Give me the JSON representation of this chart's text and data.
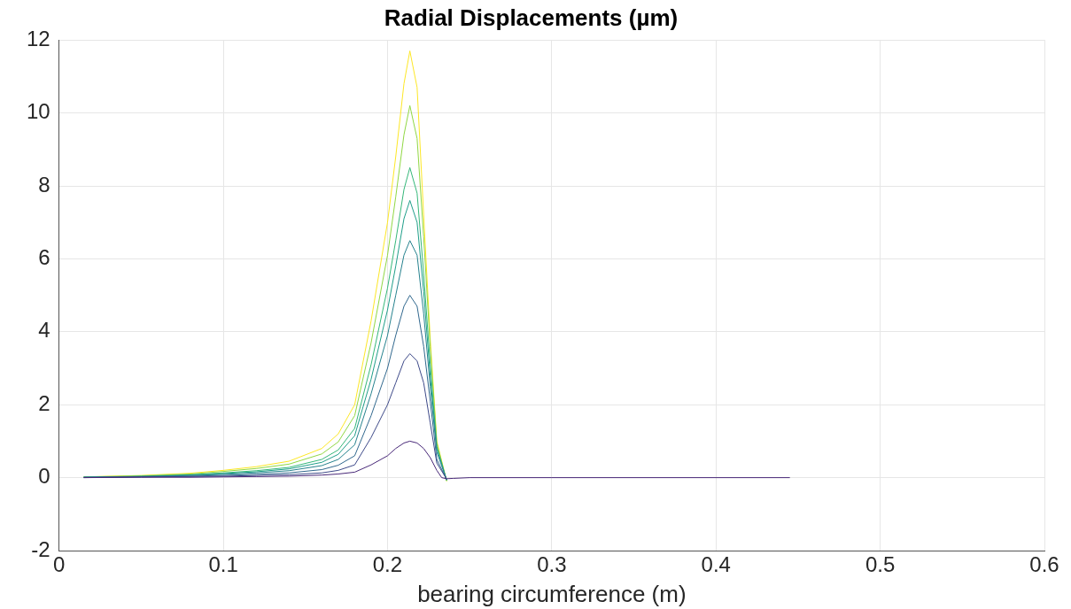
{
  "chart_data": {
    "type": "line",
    "title": "Radial Displacements (µm)",
    "xlabel": "bearing circumference (m)",
    "x": [
      0.015,
      0.05,
      0.08,
      0.1,
      0.12,
      0.14,
      0.16,
      0.17,
      0.18,
      0.19,
      0.2,
      0.205,
      0.21,
      0.2136,
      0.218,
      0.222,
      0.226,
      0.23,
      0.233,
      0.236,
      0.24,
      0.25,
      0.3,
      0.445
    ],
    "series": [
      {
        "color": "#482878",
        "values": [
          0,
          0.01,
          0.01,
          0.02,
          0.03,
          0.04,
          0.07,
          0.1,
          0.15,
          0.35,
          0.6,
          0.8,
          0.95,
          1.0,
          0.95,
          0.8,
          0.55,
          0.2,
          0,
          -0.03,
          -0.02,
          0,
          0,
          0
        ]
      },
      {
        "color": "#3e4a89",
        "values": [
          0,
          0.02,
          0.03,
          0.04,
          0.06,
          0.08,
          0.13,
          0.2,
          0.35,
          1.1,
          2.0,
          2.6,
          3.2,
          3.4,
          3.2,
          2.6,
          1.5,
          0.4,
          null,
          -0.04,
          null,
          null,
          null,
          null
        ]
      },
      {
        "color": "#31688e",
        "values": [
          0.01,
          0.02,
          0.04,
          0.06,
          0.09,
          0.13,
          0.22,
          0.34,
          0.6,
          1.7,
          3.0,
          3.9,
          4.7,
          5.0,
          4.7,
          3.6,
          2.1,
          0.5,
          null,
          -0.05,
          null,
          null,
          null,
          null
        ]
      },
      {
        "color": "#26828e",
        "values": [
          0.01,
          0.03,
          0.06,
          0.09,
          0.13,
          0.19,
          0.33,
          0.5,
          0.9,
          2.3,
          3.9,
          5.0,
          6.1,
          6.5,
          6.1,
          4.5,
          2.5,
          0.7,
          null,
          -0.06,
          null,
          null,
          null,
          null
        ]
      },
      {
        "color": "#1f9e89",
        "values": [
          0.01,
          0.03,
          0.07,
          0.11,
          0.16,
          0.24,
          0.42,
          0.64,
          1.15,
          2.7,
          4.6,
          5.8,
          7.1,
          7.6,
          7.0,
          5.1,
          2.8,
          0.8,
          null,
          -0.07,
          null,
          null,
          null,
          null
        ]
      },
      {
        "color": "#35b779",
        "values": [
          0.01,
          0.04,
          0.08,
          0.13,
          0.19,
          0.28,
          0.5,
          0.76,
          1.35,
          3.1,
          5.2,
          6.5,
          7.9,
          8.5,
          7.8,
          5.6,
          3.1,
          0.85,
          null,
          -0.08,
          null,
          null,
          null,
          null
        ]
      },
      {
        "color": "#90d743",
        "values": [
          0.02,
          0.05,
          0.1,
          0.17,
          0.25,
          0.37,
          0.65,
          0.98,
          1.7,
          3.7,
          6.1,
          7.7,
          9.4,
          10.2,
          9.3,
          6.6,
          3.6,
          0.95,
          null,
          -0.09,
          null,
          null,
          null,
          null
        ]
      },
      {
        "color": "#fde725",
        "values": [
          0.02,
          0.06,
          0.12,
          0.2,
          0.3,
          0.45,
          0.8,
          1.2,
          2.0,
          4.3,
          7.0,
          8.8,
          10.8,
          11.7,
          10.7,
          7.2,
          3.8,
          1.0,
          null,
          -0.1,
          null,
          null,
          null,
          null
        ]
      }
    ],
    "xlim": [
      0,
      0.6
    ],
    "xticks": [
      0,
      0.1,
      0.2,
      0.3,
      0.4,
      0.5,
      0.6
    ],
    "ylim": [
      -2,
      12
    ],
    "yticks": [
      -2,
      0,
      2,
      4,
      6,
      8,
      10,
      12
    ],
    "grid": true,
    "legend": false,
    "marker": "none",
    "line_style": "solid"
  }
}
